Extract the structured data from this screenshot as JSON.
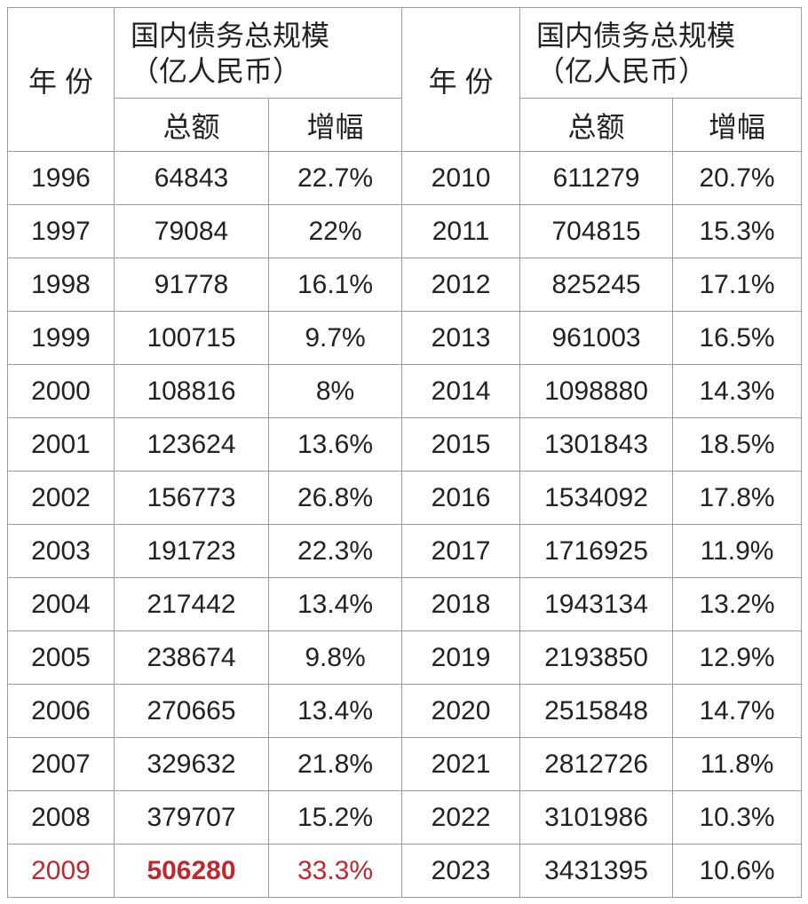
{
  "table": {
    "header": {
      "year": "年 份",
      "group_lines": [
        "国内债务总规模",
        "（亿人民币）"
      ],
      "total": "总额",
      "growth": "增幅"
    },
    "left_rows": [
      [
        "1996",
        "64843",
        "22.7%"
      ],
      [
        "1997",
        "79084",
        "22%"
      ],
      [
        "1998",
        "91778",
        "16.1%"
      ],
      [
        "1999",
        "100715",
        "9.7%"
      ],
      [
        "2000",
        "108816",
        "8%"
      ],
      [
        "2001",
        "123624",
        "13.6%"
      ],
      [
        "2002",
        "156773",
        "26.8%"
      ],
      [
        "2003",
        "191723",
        "22.3%"
      ],
      [
        "2004",
        "217442",
        "13.4%"
      ],
      [
        "2005",
        "238674",
        "9.8%"
      ],
      [
        "2006",
        "270665",
        "13.4%"
      ],
      [
        "2007",
        "329632",
        "21.8%"
      ],
      [
        "2008",
        "379707",
        "15.2%"
      ],
      [
        "2009",
        "506280",
        "33.3%"
      ]
    ],
    "right_rows": [
      [
        "2010",
        "611279",
        "20.7%"
      ],
      [
        "2011",
        "704815",
        "15.3%"
      ],
      [
        "2012",
        "825245",
        "17.1%"
      ],
      [
        "2013",
        "961003",
        "16.5%"
      ],
      [
        "2014",
        "1098880",
        "14.3%"
      ],
      [
        "2015",
        "1301843",
        "18.5%"
      ],
      [
        "2016",
        "1534092",
        "17.8%"
      ],
      [
        "2017",
        "1716925",
        "11.9%"
      ],
      [
        "2018",
        "1943134",
        "13.2%"
      ],
      [
        "2019",
        "2193850",
        "12.9%"
      ],
      [
        "2020",
        "2515848",
        "14.7%"
      ],
      [
        "2021",
        "2812726",
        "11.8%"
      ],
      [
        "2022",
        "3101986",
        "10.3%"
      ],
      [
        "2023",
        "3431395",
        "10.6%"
      ]
    ],
    "highlight": {
      "side": "left_rows",
      "row": 13,
      "color": "#c0282d"
    }
  }
}
